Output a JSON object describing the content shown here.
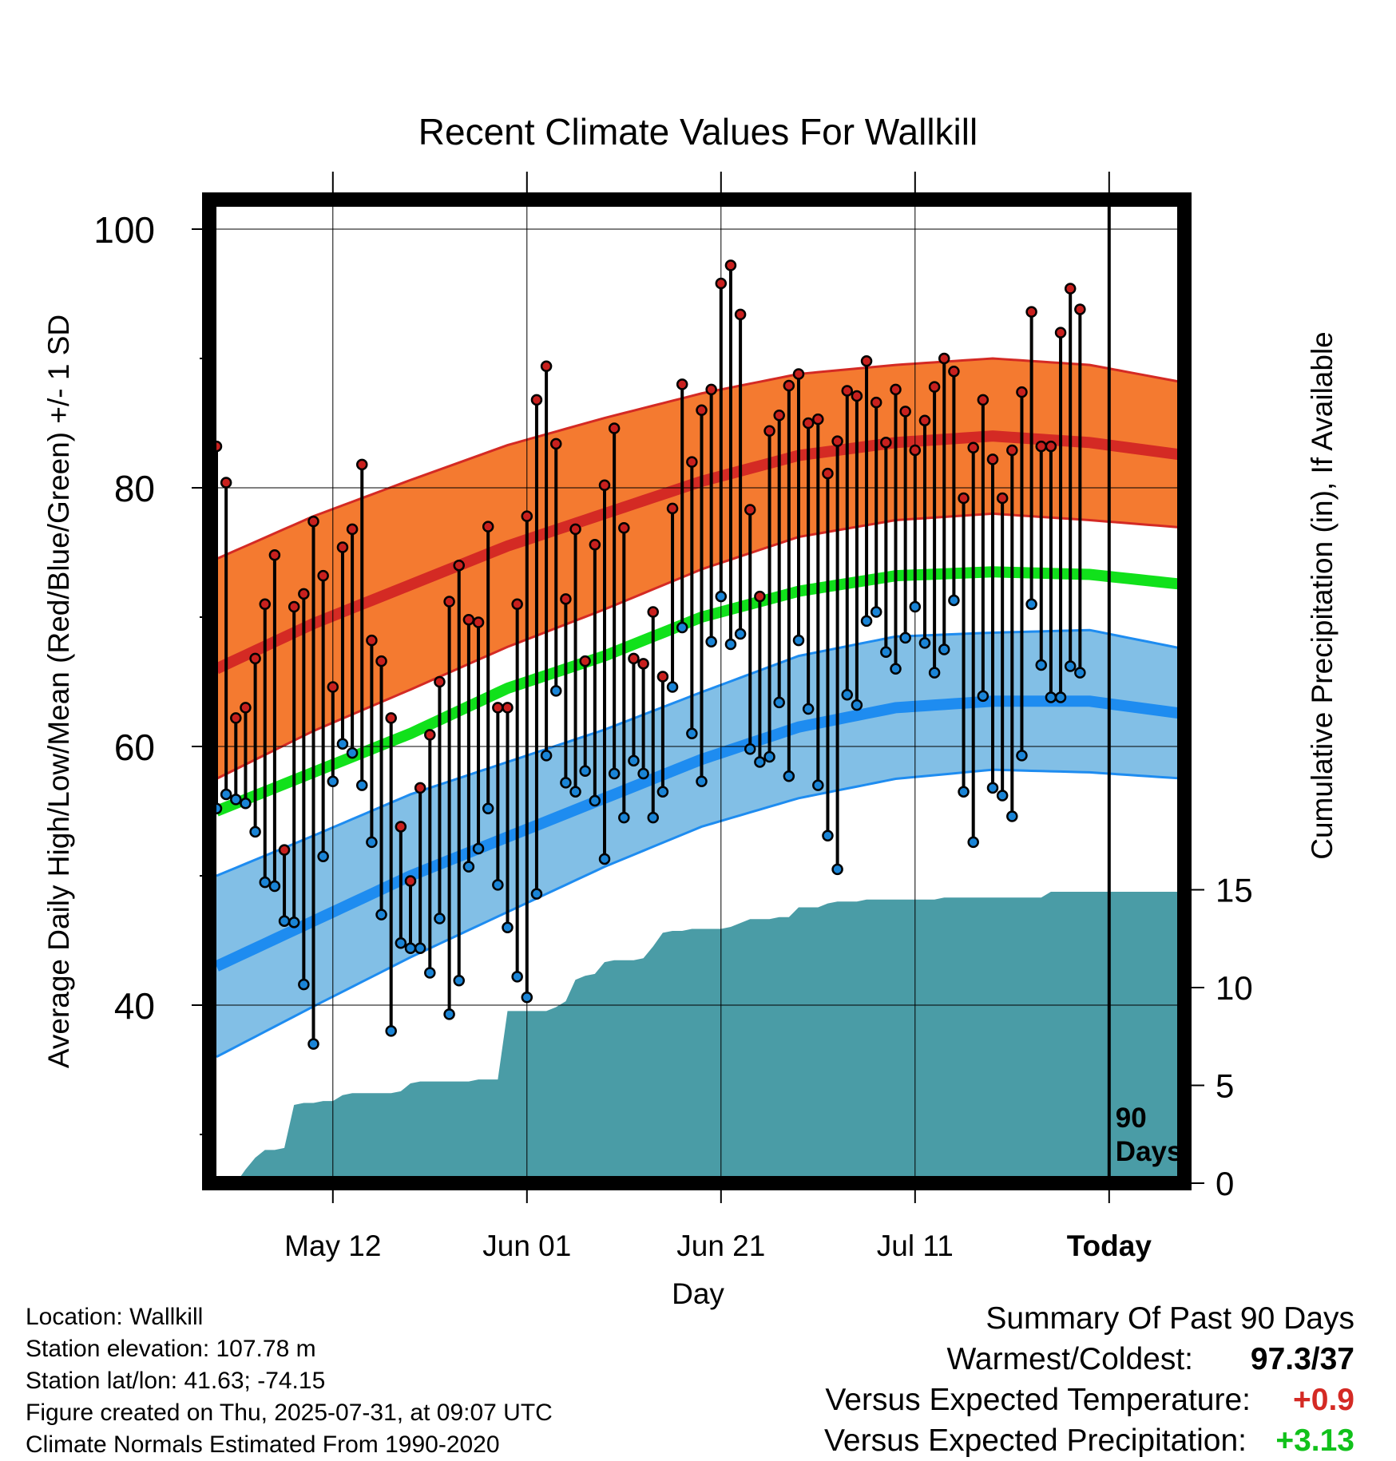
{
  "chart_data": {
    "type": "line",
    "title": "Recent Climate Values For Wallkill",
    "xlabel": "Day",
    "ylabel": "Average Daily High/Low/Mean (Red/Blue/Green) +/- 1 SD",
    "ylabel_right": "Cumulative Precipitation (in), If Available",
    "ylim": [
      28.5,
      104.5
    ],
    "y_ticks": [
      "100",
      "80",
      "60",
      "40"
    ],
    "y2lim": [
      0,
      20
    ],
    "y2_ticks": [
      "0",
      "5",
      "10",
      "15"
    ],
    "x_ticks": [
      {
        "label": "May 12",
        "day": 12
      },
      {
        "label": "Jun 01",
        "day": 32
      },
      {
        "label": "Jun 21",
        "day": 52
      },
      {
        "label": "Jul 11",
        "day": 72
      },
      {
        "label": "Today",
        "day": 92
      }
    ],
    "grid": true,
    "marker_label": "90 Days",
    "normals_days": [
      0,
      10,
      20,
      30,
      40,
      50,
      60,
      70,
      80,
      90,
      100
    ],
    "normal_high": [
      66,
      69.5,
      72.5,
      75.5,
      78,
      80.5,
      82.5,
      83.5,
      84,
      83.5,
      82.5
    ],
    "normal_high_sd": [
      8.5,
      8.3,
      8.1,
      7.8,
      7.4,
      6.8,
      6.3,
      6,
      6,
      6,
      5.6
    ],
    "normal_low": [
      43,
      46.5,
      50,
      53,
      56,
      59,
      61.5,
      63,
      63.5,
      63.5,
      62.5
    ],
    "normal_low_sd": [
      7,
      6.6,
      6.3,
      5.8,
      5.3,
      5.2,
      5.5,
      5.5,
      5.3,
      5.5,
      5
    ],
    "normal_mean": [
      55,
      58,
      61,
      64.5,
      67,
      70,
      72,
      73.2,
      73.5,
      73.3,
      72.5
    ],
    "daily_high": [
      83.2,
      80.4,
      62.2,
      63,
      66.8,
      71,
      74.8,
      52,
      70.8,
      71.8,
      77.4,
      73.2,
      64.6,
      75.4,
      76.8,
      81.8,
      68.2,
      66.6,
      62.2,
      53.8,
      49.6,
      56.8,
      60.9,
      65,
      71.2,
      74,
      69.8,
      69.6,
      77,
      63,
      63,
      71,
      77.8,
      86.8,
      89.4,
      83.4,
      71.4,
      76.8,
      66.6,
      75.6,
      80.2,
      84.6,
      76.9,
      66.8,
      66.4,
      70.4,
      65.4,
      78.4,
      88,
      82,
      86,
      87.6,
      95.8,
      97.2,
      93.4,
      78.3,
      71.6,
      84.4,
      85.6,
      87.9,
      88.8,
      85,
      85.3,
      81.1,
      83.6,
      87.5,
      87.1,
      89.8,
      86.6,
      83.5,
      87.6,
      85.9,
      82.9,
      85.2,
      87.8,
      90,
      89,
      79.2,
      83.1,
      86.8,
      82.2,
      79.2,
      82.9,
      87.4,
      93.6,
      83.2,
      83.2,
      92,
      95.4,
      93.8
    ],
    "daily_low": [
      55.2,
      56.3,
      55.9,
      55.6,
      53.4,
      49.5,
      49.2,
      46.5,
      46.4,
      41.6,
      37,
      51.5,
      57.3,
      60.2,
      59.5,
      57,
      52.6,
      47,
      38,
      44.8,
      44.4,
      44.4,
      42.5,
      46.7,
      39.3,
      41.9,
      50.7,
      52.1,
      55.2,
      49.3,
      46,
      42.2,
      40.6,
      48.6,
      59.3,
      64.3,
      57.2,
      56.5,
      58.1,
      55.8,
      51.3,
      57.9,
      54.5,
      58.9,
      57.9,
      54.5,
      56.5,
      64.6,
      69.2,
      61,
      57.3,
      68.1,
      71.6,
      67.9,
      68.7,
      59.8,
      58.8,
      59.2,
      63.4,
      57.7,
      68.2,
      62.9,
      57,
      53.1,
      50.5,
      64,
      63.2,
      69.7,
      70.4,
      67.3,
      66,
      68.4,
      70.8,
      68,
      65.7,
      67.5,
      71.3,
      56.5,
      52.6,
      63.9,
      56.8,
      56.2,
      54.6,
      59.3,
      71,
      66.3,
      63.8,
      63.8,
      66.2,
      65.7
    ],
    "precip_days": [
      0,
      1,
      2,
      3,
      4,
      5,
      6,
      7,
      8,
      9,
      10,
      11,
      12,
      13,
      14,
      15,
      16,
      17,
      18,
      19,
      20,
      21,
      22,
      23,
      24,
      25,
      26,
      27,
      28,
      29,
      30,
      31,
      32,
      33,
      34,
      35,
      36,
      37,
      38,
      39,
      40,
      41,
      42,
      43,
      44,
      45,
      46,
      47,
      48,
      49,
      50,
      51,
      52,
      53,
      54,
      55,
      56,
      57,
      58,
      59,
      60,
      61,
      62,
      63,
      64,
      65,
      66,
      67,
      68,
      69,
      70,
      71,
      72,
      73,
      74,
      75,
      76,
      77,
      78,
      79,
      80,
      81,
      82,
      83,
      84,
      85,
      86,
      87,
      88,
      89,
      90,
      91,
      92,
      93,
      94,
      95,
      96,
      97,
      98,
      99,
      100
    ],
    "precip_cum": [
      0,
      0,
      0,
      0.7,
      1.3,
      1.7,
      1.7,
      1.8,
      4,
      4.1,
      4.1,
      4.2,
      4.2,
      4.5,
      4.6,
      4.6,
      4.6,
      4.6,
      4.6,
      4.7,
      5.1,
      5.2,
      5.2,
      5.2,
      5.2,
      5.2,
      5.2,
      5.3,
      5.3,
      5.3,
      8.8,
      8.8,
      8.8,
      8.8,
      8.8,
      9,
      9.3,
      10.4,
      10.6,
      10.7,
      11.3,
      11.4,
      11.4,
      11.4,
      11.5,
      12.1,
      12.8,
      12.9,
      12.9,
      13,
      13,
      13,
      13,
      13.1,
      13.3,
      13.5,
      13.5,
      13.5,
      13.6,
      13.6,
      14.1,
      14.1,
      14.1,
      14.3,
      14.4,
      14.4,
      14.4,
      14.5,
      14.5,
      14.5,
      14.5,
      14.5,
      14.5,
      14.5,
      14.5,
      14.6,
      14.6,
      14.6,
      14.6,
      14.6,
      14.6,
      14.6,
      14.6,
      14.6,
      14.6,
      14.6,
      14.9,
      14.9,
      14.9,
      14.9,
      14.9,
      14.9,
      14.9,
      14.9,
      14.9,
      14.9,
      14.9,
      14.9,
      14.9,
      14.9,
      14.9
    ],
    "colors": {
      "high_band": "#f47a30",
      "high_line": "#d42a24",
      "low_band": "#82bfe6",
      "low_line": "#1e8cf0",
      "mean_line": "#11e11b",
      "precip": "#4a9ca6",
      "high_dot": "#c8201e",
      "low_dot": "#1a84d6"
    }
  },
  "footer": {
    "location": "Location: Wallkill",
    "elevation": "Station elevation: 107.78 m",
    "latlon": "Station lat/lon: 41.63; -74.15",
    "created": "Figure created on Thu, 2025-07-31, at 09:07 UTC",
    "normals": "Climate Normals Estimated From 1990-2020"
  },
  "summary": {
    "heading": "Summary Of Past 90 Days",
    "warmest_label": "Warmest/Coldest:",
    "warmest_value": "97.3",
    "coldest_value": "/37",
    "temp_label": "Versus Expected Temperature:",
    "temp_value": "+0.9",
    "temp_color": "#d42a24",
    "precip_label": "Versus Expected Precipitation:",
    "precip_value": "+3.13",
    "precip_color": "#11c11b"
  }
}
